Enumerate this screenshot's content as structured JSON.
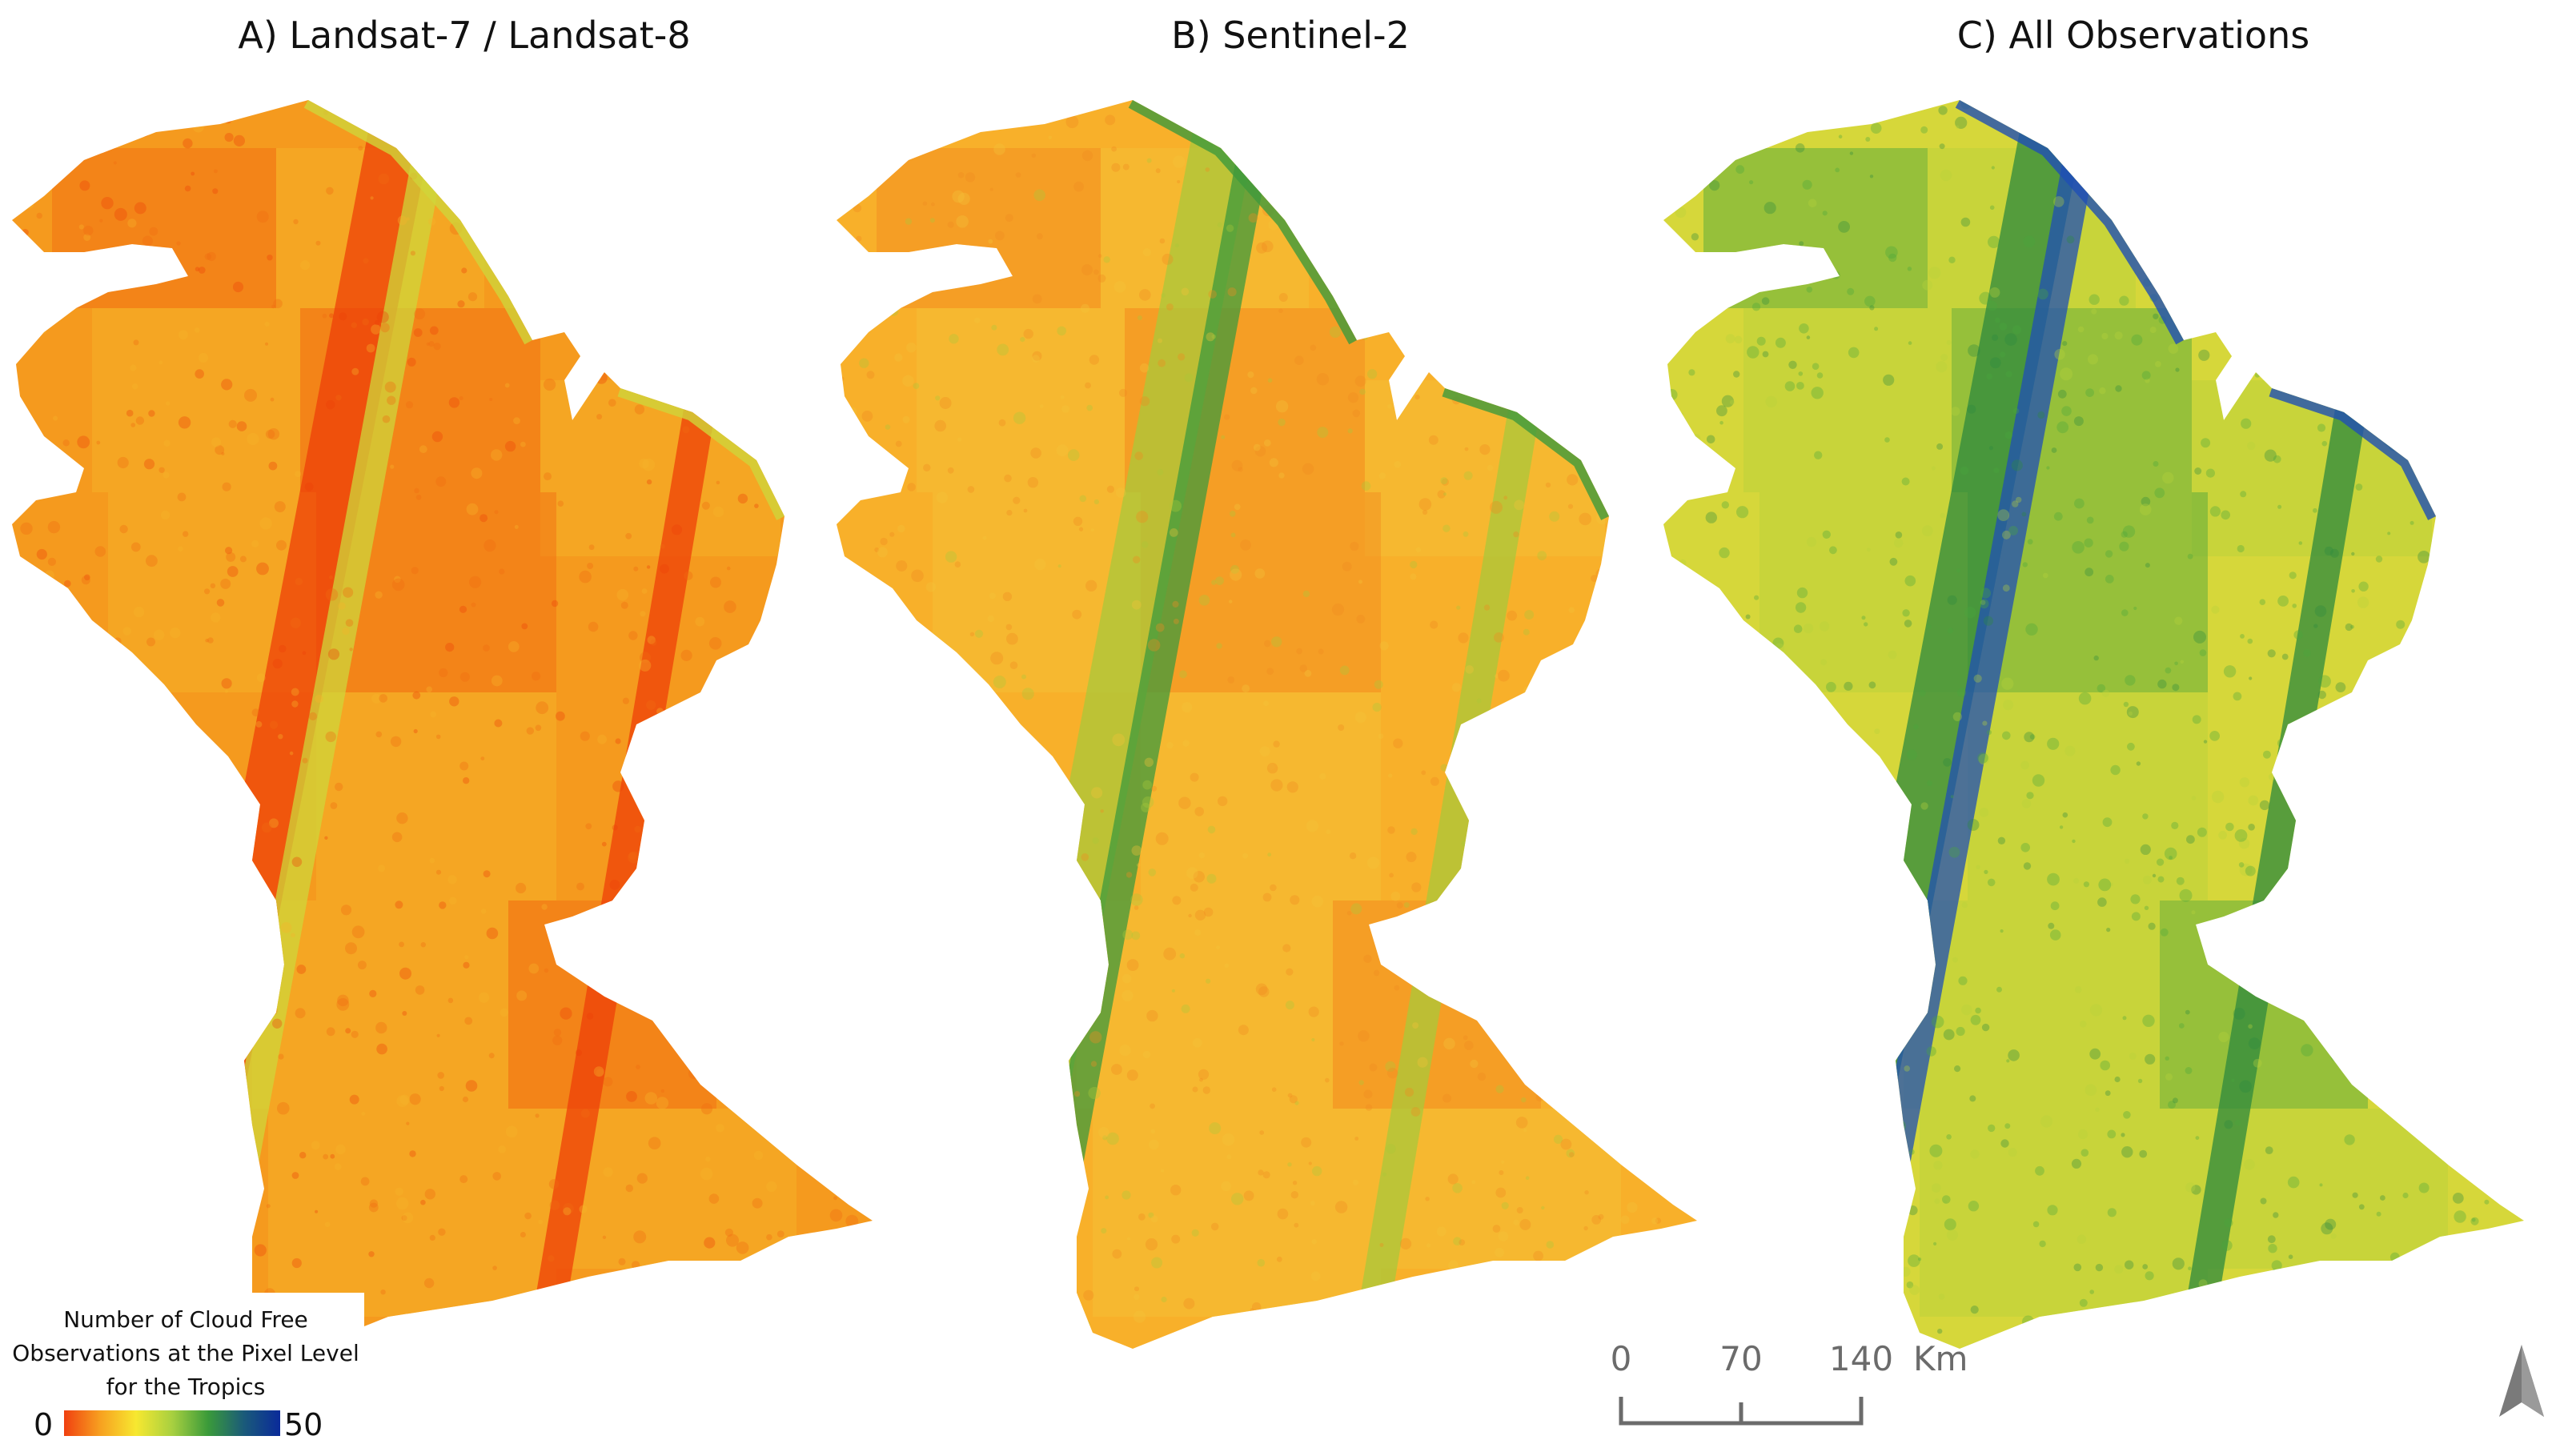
{
  "panels": [
    {
      "id": "a",
      "title": "A) Landsat-7 / Landsat-8",
      "palette": {
        "base": "#f59a1e",
        "light": "#f7b52a",
        "dark": "#f26a12",
        "stripe": "#ee3f08",
        "accent": "#cfd53a"
      }
    },
    {
      "id": "b",
      "title": "B) Sentinel-2",
      "palette": {
        "base": "#f8b02a",
        "light": "#f3c338",
        "dark": "#f28a1f",
        "stripe": "#a9c83a",
        "accent": "#3f9a3c"
      }
    },
    {
      "id": "c",
      "title": "C) All Observations",
      "palette": {
        "base": "#d6d73a",
        "light": "#b8d13c",
        "dark": "#4aa53c",
        "stripe": "#2d8a3e",
        "accent": "#1f4fb5"
      }
    }
  ],
  "legend": {
    "title_lines": [
      "Number of Cloud Free",
      "Observations at the Pixel Level",
      "for the Tropics"
    ],
    "min_label": "0",
    "max_label": "50",
    "ramp_colors": [
      "#f04010",
      "#f7a020",
      "#f7e830",
      "#a8d040",
      "#3a9a3a",
      "#1a5a7a",
      "#0a2a9a"
    ]
  },
  "scale_bar": {
    "labels": [
      "0",
      "70",
      "140"
    ],
    "unit": "Km"
  },
  "north_arrow": {
    "icon": "north-arrow-icon"
  }
}
